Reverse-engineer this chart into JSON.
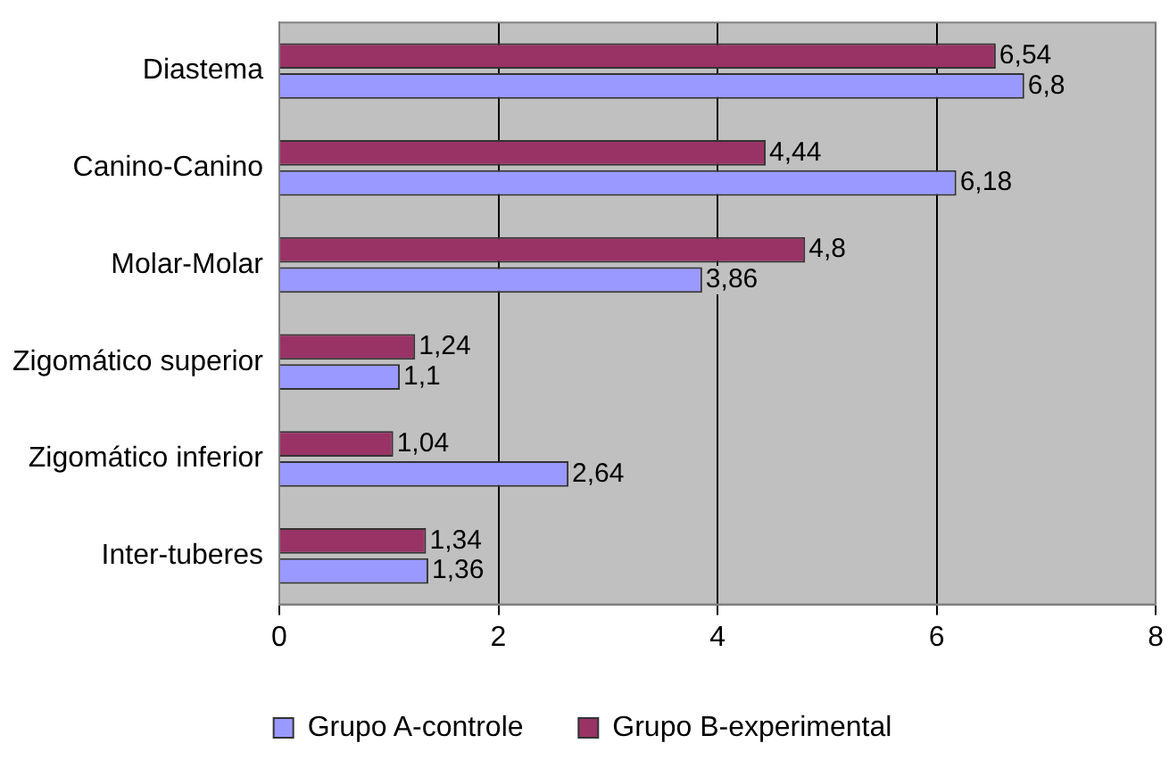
{
  "chart_data": {
    "type": "bar",
    "orientation": "horizontal",
    "categories": [
      "Diastema",
      "Canino-Canino",
      "Molar-Molar",
      "Zigomático superior",
      "Zigomático inferior",
      "Inter-tuberes"
    ],
    "series": [
      {
        "name": "Grupo A-controle",
        "color": "#9999ff",
        "values": [
          6.8,
          6.18,
          3.86,
          1.1,
          2.64,
          1.36
        ],
        "value_labels": [
          "6,8",
          "6,18",
          "3,86",
          "1,1",
          "2,64",
          "1,36"
        ]
      },
      {
        "name": "Grupo B-experimental",
        "color": "#993366",
        "values": [
          6.54,
          4.44,
          4.8,
          1.24,
          1.04,
          1.34
        ],
        "value_labels": [
          "6,54",
          "4,44",
          "4,8",
          "1,24",
          "1,04",
          "1,34"
        ]
      }
    ],
    "xlim": [
      0,
      8
    ],
    "xticks": [
      0,
      2,
      4,
      6,
      8
    ],
    "grid": "x",
    "legend": "bottom"
  }
}
